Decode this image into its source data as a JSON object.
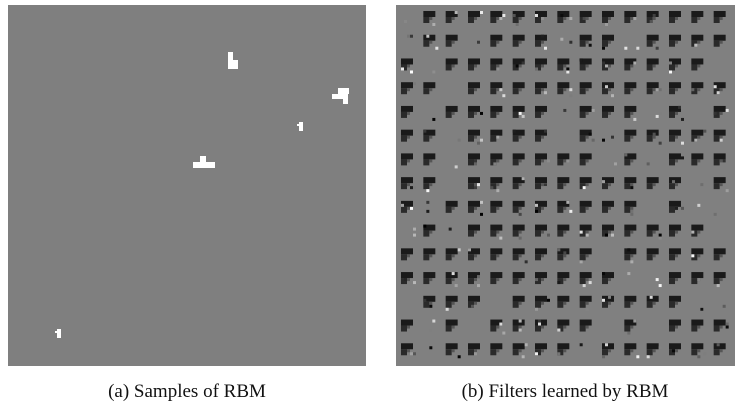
{
  "figure": {
    "panels": [
      {
        "caption": "(a) Samples of RBM"
      },
      {
        "caption": "(b) Filters learned by RBM"
      }
    ]
  }
}
